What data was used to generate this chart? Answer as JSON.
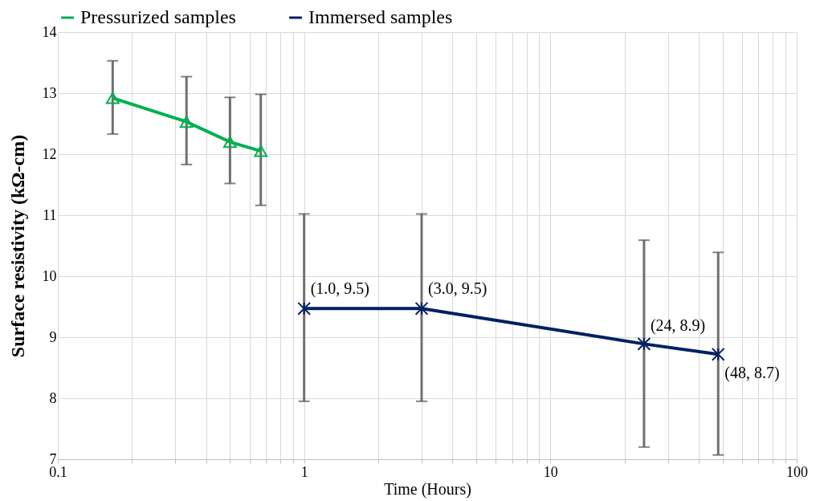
{
  "chart_data": {
    "type": "line",
    "xlabel": "Time (Hours)",
    "ylabel": "Surface resistivity (kΩ-cm)",
    "log": "x",
    "grid": true,
    "legend": "top",
    "xlim": [
      0.1,
      100
    ],
    "ylim": [
      7,
      14
    ],
    "yticks": [
      7,
      8,
      9,
      10,
      11,
      12,
      13,
      14
    ],
    "xticks": [
      {
        "value": 0.1,
        "label": "0.1"
      },
      {
        "value": 0.2,
        "label": null
      },
      {
        "value": 0.3,
        "label": null
      },
      {
        "value": 0.4,
        "label": null
      },
      {
        "value": 0.5,
        "label": null
      },
      {
        "value": 0.6,
        "label": null
      },
      {
        "value": 0.7,
        "label": null
      },
      {
        "value": 0.8,
        "label": null
      },
      {
        "value": 0.9,
        "label": null
      },
      {
        "value": 1,
        "label": "1"
      },
      {
        "value": 2,
        "label": null
      },
      {
        "value": 3,
        "label": null
      },
      {
        "value": 4,
        "label": null
      },
      {
        "value": 5,
        "label": null
      },
      {
        "value": 6,
        "label": null
      },
      {
        "value": 7,
        "label": null
      },
      {
        "value": 8,
        "label": null
      },
      {
        "value": 9,
        "label": null
      },
      {
        "value": 10,
        "label": "10"
      },
      {
        "value": 20,
        "label": null
      },
      {
        "value": 30,
        "label": null
      },
      {
        "value": 40,
        "label": null
      },
      {
        "value": 50,
        "label": null
      },
      {
        "value": 60,
        "label": null
      },
      {
        "value": 70,
        "label": null
      },
      {
        "value": 80,
        "label": null
      },
      {
        "value": 90,
        "label": null
      },
      {
        "value": 100,
        "label": "100"
      }
    ],
    "series": [
      {
        "name": "Pressurized samples",
        "color": "#00b050",
        "marker": "triangle",
        "line_style": "solid",
        "x": [
          0.167,
          0.333,
          0.5,
          0.667
        ],
        "values": [
          12.92,
          12.53,
          12.2,
          12.05
        ],
        "errors": [
          [
            12.33,
            13.53
          ],
          [
            11.83,
            13.27
          ],
          [
            11.52,
            12.93
          ],
          [
            11.16,
            12.98
          ]
        ]
      },
      {
        "name": "Immersed samples",
        "color": "#002060",
        "marker": "cross",
        "line_style": "solid",
        "x": [
          1,
          3,
          24,
          48
        ],
        "values": [
          9.47,
          9.47,
          8.89,
          8.72
        ],
        "errors": [
          [
            7.95,
            11.02
          ],
          [
            7.95,
            11.02
          ],
          [
            7.2,
            10.59
          ],
          [
            7.07,
            10.39
          ]
        ]
      }
    ],
    "annotations": [
      {
        "text": "(1.0, 9.5)",
        "x": 1,
        "y": 9.5
      },
      {
        "text": "(3.0, 9.5)",
        "x": 3,
        "y": 9.5
      },
      {
        "text": "(24, 8.9)",
        "x": 24,
        "y": 8.9
      },
      {
        "text": "(48, 8.7)",
        "x": 48,
        "y": 8.7
      }
    ]
  }
}
